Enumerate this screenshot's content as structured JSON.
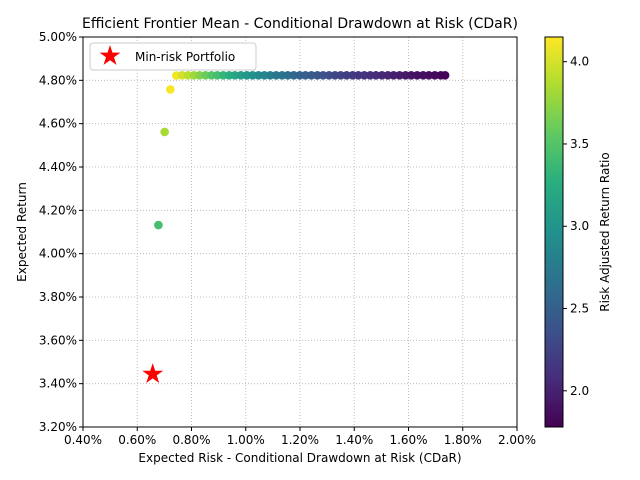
{
  "chart_data": {
    "type": "scatter",
    "title": "Efficient Frontier Mean - Conditional Drawdown at Risk (CDaR)",
    "xlabel": "Expected Risk - Conditional Drawdown at Risk (CDaR)",
    "ylabel": "Expected Return",
    "xlim": [
      0.004,
      0.02
    ],
    "ylim": [
      0.032,
      0.05
    ],
    "x_ticks": [
      0.004,
      0.006,
      0.008,
      0.01,
      0.012,
      0.014,
      0.016,
      0.018,
      0.02
    ],
    "x_tick_labels": [
      "0.40%",
      "0.60%",
      "0.80%",
      "1.00%",
      "1.20%",
      "1.40%",
      "1.60%",
      "1.80%",
      "2.00%"
    ],
    "y_ticks": [
      0.032,
      0.034,
      0.036,
      0.038,
      0.04,
      0.042,
      0.044,
      0.046,
      0.048,
      0.05
    ],
    "y_tick_labels": [
      "3.20%",
      "3.40%",
      "3.60%",
      "3.80%",
      "4.00%",
      "4.20%",
      "4.40%",
      "4.60%",
      "4.80%",
      "5.00%"
    ],
    "grid": true,
    "legend": {
      "placement": "top-left",
      "entries": [
        "Min-risk Portfolio"
      ]
    },
    "colorbar": {
      "label": "Risk Adjusted Return Ratio",
      "colormap": "viridis",
      "range": [
        1.78,
        4.15
      ],
      "ticks": [
        2.0,
        2.5,
        3.0,
        3.5,
        4.0
      ],
      "tick_labels": [
        "2.0",
        "2.5",
        "3.0",
        "3.5",
        "4.0"
      ]
    },
    "frontier": {
      "x": [
        0.00678,
        0.00701,
        0.00722,
        0.00744,
        0.00765,
        0.00787,
        0.00809,
        0.0083,
        0.00852,
        0.00874,
        0.00895,
        0.00917,
        0.00939,
        0.0096,
        0.00982,
        0.01004,
        0.01025,
        0.01047,
        0.01069,
        0.0109,
        0.01112,
        0.01134,
        0.01155,
        0.01177,
        0.01199,
        0.0122,
        0.01242,
        0.01264,
        0.01285,
        0.01307,
        0.01329,
        0.0135,
        0.01372,
        0.01394,
        0.01415,
        0.01437,
        0.01459,
        0.0148,
        0.01502,
        0.01524,
        0.01545,
        0.01567,
        0.01589,
        0.0161,
        0.01632,
        0.01654,
        0.01675,
        0.01697,
        0.01719,
        0.01735
      ],
      "y": [
        0.04132,
        0.04562,
        0.04758,
        0.04822,
        0.04823,
        0.04823,
        0.04823,
        0.04823,
        0.04823,
        0.04823,
        0.04823,
        0.04823,
        0.04823,
        0.04823,
        0.04823,
        0.04823,
        0.04823,
        0.04823,
        0.04823,
        0.04823,
        0.04823,
        0.04823,
        0.04823,
        0.04823,
        0.04823,
        0.04823,
        0.04823,
        0.04823,
        0.04823,
        0.04823,
        0.04823,
        0.04823,
        0.04823,
        0.04823,
        0.04823,
        0.04823,
        0.04823,
        0.04823,
        0.04823,
        0.04823,
        0.04823,
        0.04823,
        0.04823,
        0.04823,
        0.04823,
        0.04823,
        0.04823,
        0.04823,
        0.04823,
        0.04823
      ],
      "ratio": [
        3.43,
        3.83,
        4.13,
        4.11,
        4.0,
        3.9,
        3.8,
        3.7,
        3.6,
        3.5,
        3.42,
        3.34,
        3.26,
        3.18,
        3.1,
        3.03,
        2.97,
        2.91,
        2.85,
        2.79,
        2.73,
        2.68,
        2.63,
        2.58,
        2.53,
        2.49,
        2.45,
        2.41,
        2.37,
        2.33,
        2.29,
        2.26,
        2.22,
        2.19,
        2.16,
        2.13,
        2.1,
        2.07,
        2.04,
        2.02,
        1.99,
        1.97,
        1.94,
        1.92,
        1.9,
        1.88,
        1.86,
        1.84,
        1.82,
        1.8
      ]
    },
    "min_risk_portfolio": {
      "label": "Min-risk Portfolio",
      "x": 0.00657,
      "y": 0.03444,
      "color": "#ff0000"
    }
  }
}
